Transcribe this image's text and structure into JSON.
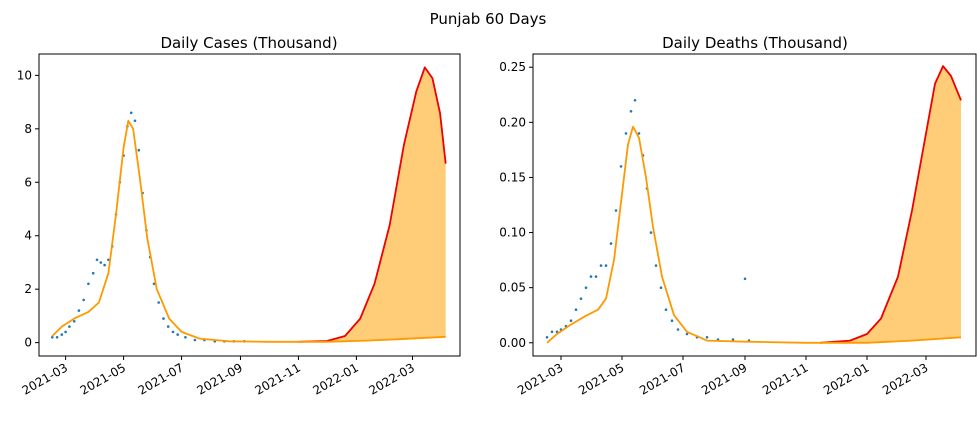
{
  "figure": {
    "suptitle": "Punjab 60 Days"
  },
  "colors": {
    "points": "#1f77b4",
    "forecast": "#ee0000",
    "fit": "#ff9900",
    "band": "#ffcc77"
  },
  "chart_data": [
    {
      "type": "line",
      "title": "Daily Cases (Thousand)",
      "xlabel": "",
      "ylabel": "",
      "x_axis": "date",
      "xlim": [
        "2021-02-01",
        "2022-04-20"
      ],
      "ylim": [
        -0.5,
        10.8
      ],
      "x_ticks": [
        "2021-03",
        "2021-05",
        "2021-07",
        "2021-09",
        "2021-11",
        "2022-01",
        "2022-03"
      ],
      "y_ticks": [
        "0",
        "2",
        "4",
        "6",
        "8",
        "10"
      ],
      "grid": false,
      "legend": "none",
      "series": [
        {
          "kind": "scatter",
          "points": [
            [
              "2021-02-15",
              0.2
            ],
            [
              "2021-02-20",
              0.2
            ],
            [
              "2021-02-25",
              0.3
            ],
            [
              "2021-03-01",
              0.4
            ],
            [
              "2021-03-05",
              0.6
            ],
            [
              "2021-03-10",
              0.8
            ],
            [
              "2021-03-15",
              1.2
            ],
            [
              "2021-03-20",
              1.6
            ],
            [
              "2021-03-25",
              2.2
            ],
            [
              "2021-03-30",
              2.6
            ],
            [
              "2021-04-03",
              3.1
            ],
            [
              "2021-04-07",
              3.0
            ],
            [
              "2021-04-11",
              2.9
            ],
            [
              "2021-04-15",
              3.1
            ],
            [
              "2021-04-19",
              3.6
            ],
            [
              "2021-04-23",
              4.8
            ],
            [
              "2021-04-27",
              6.0
            ],
            [
              "2021-05-01",
              7.0
            ],
            [
              "2021-05-05",
              8.1
            ],
            [
              "2021-05-09",
              8.6
            ],
            [
              "2021-05-13",
              8.3
            ],
            [
              "2021-05-17",
              7.2
            ],
            [
              "2021-05-21",
              5.6
            ],
            [
              "2021-05-25",
              4.2
            ],
            [
              "2021-05-29",
              3.2
            ],
            [
              "2021-06-02",
              2.2
            ],
            [
              "2021-06-07",
              1.5
            ],
            [
              "2021-06-12",
              0.9
            ],
            [
              "2021-06-17",
              0.6
            ],
            [
              "2021-06-22",
              0.4
            ],
            [
              "2021-06-27",
              0.3
            ],
            [
              "2021-07-05",
              0.2
            ],
            [
              "2021-07-15",
              0.1
            ],
            [
              "2021-07-25",
              0.1
            ],
            [
              "2021-08-05",
              0.05
            ],
            [
              "2021-08-15",
              0.05
            ],
            [
              "2021-08-25",
              0.05
            ],
            [
              "2021-09-05",
              0.05
            ]
          ]
        },
        {
          "kind": "line",
          "role": "fit",
          "points": [
            [
              "2021-02-15",
              0.25
            ],
            [
              "2021-02-25",
              0.6
            ],
            [
              "2021-03-10",
              0.9
            ],
            [
              "2021-03-25",
              1.15
            ],
            [
              "2021-04-05",
              1.5
            ],
            [
              "2021-04-15",
              2.6
            ],
            [
              "2021-04-23",
              4.8
            ],
            [
              "2021-05-01",
              7.3
            ],
            [
              "2021-05-06",
              8.3
            ],
            [
              "2021-05-11",
              8.0
            ],
            [
              "2021-05-18",
              6.2
            ],
            [
              "2021-05-26",
              3.9
            ],
            [
              "2021-06-05",
              2.0
            ],
            [
              "2021-06-18",
              0.9
            ],
            [
              "2021-07-01",
              0.4
            ],
            [
              "2021-07-20",
              0.15
            ],
            [
              "2021-08-20",
              0.05
            ],
            [
              "2021-10-01",
              0.03
            ],
            [
              "2021-12-01",
              0.03
            ],
            [
              "2022-01-15",
              0.08
            ],
            [
              "2022-02-15",
              0.13
            ],
            [
              "2022-04-05",
              0.22
            ]
          ]
        },
        {
          "kind": "line",
          "role": "forecast",
          "points": [
            [
              "2021-11-01",
              0.03
            ],
            [
              "2021-12-01",
              0.06
            ],
            [
              "2021-12-20",
              0.25
            ],
            [
              "2022-01-05",
              0.9
            ],
            [
              "2022-01-20",
              2.2
            ],
            [
              "2022-02-05",
              4.4
            ],
            [
              "2022-02-20",
              7.4
            ],
            [
              "2022-03-05",
              9.4
            ],
            [
              "2022-03-14",
              10.3
            ],
            [
              "2022-03-22",
              9.9
            ],
            [
              "2022-03-30",
              8.6
            ],
            [
              "2022-04-05",
              6.7
            ]
          ]
        }
      ]
    },
    {
      "type": "line",
      "title": "Daily Deaths (Thousand)",
      "xlabel": "",
      "ylabel": "",
      "x_axis": "date",
      "xlim": [
        "2021-02-01",
        "2022-04-20"
      ],
      "ylim": [
        -0.012,
        0.262
      ],
      "x_ticks": [
        "2021-03",
        "2021-05",
        "2021-07",
        "2021-09",
        "2021-11",
        "2022-01",
        "2022-03"
      ],
      "y_ticks": [
        "0.00",
        "0.05",
        "0.10",
        "0.15",
        "0.20",
        "0.25"
      ],
      "grid": false,
      "legend": "none",
      "series": [
        {
          "kind": "scatter",
          "points": [
            [
              "2021-02-15",
              0.005
            ],
            [
              "2021-02-20",
              0.01
            ],
            [
              "2021-02-25",
              0.01
            ],
            [
              "2021-03-01",
              0.012
            ],
            [
              "2021-03-06",
              0.015
            ],
            [
              "2021-03-11",
              0.02
            ],
            [
              "2021-03-16",
              0.03
            ],
            [
              "2021-03-21",
              0.04
            ],
            [
              "2021-03-26",
              0.05
            ],
            [
              "2021-03-31",
              0.06
            ],
            [
              "2021-04-05",
              0.06
            ],
            [
              "2021-04-10",
              0.07
            ],
            [
              "2021-04-15",
              0.07
            ],
            [
              "2021-04-20",
              0.09
            ],
            [
              "2021-04-25",
              0.12
            ],
            [
              "2021-04-30",
              0.16
            ],
            [
              "2021-05-05",
              0.19
            ],
            [
              "2021-05-10",
              0.21
            ],
            [
              "2021-05-14",
              0.22
            ],
            [
              "2021-05-18",
              0.19
            ],
            [
              "2021-05-22",
              0.17
            ],
            [
              "2021-05-26",
              0.14
            ],
            [
              "2021-05-30",
              0.1
            ],
            [
              "2021-06-04",
              0.07
            ],
            [
              "2021-06-09",
              0.05
            ],
            [
              "2021-06-14",
              0.03
            ],
            [
              "2021-06-20",
              0.02
            ],
            [
              "2021-06-26",
              0.012
            ],
            [
              "2021-07-05",
              0.008
            ],
            [
              "2021-07-15",
              0.005
            ],
            [
              "2021-07-25",
              0.005
            ],
            [
              "2021-08-05",
              0.003
            ],
            [
              "2021-08-20",
              0.003
            ],
            [
              "2021-09-01",
              0.058
            ],
            [
              "2021-09-05",
              0.002
            ]
          ]
        },
        {
          "kind": "line",
          "role": "fit",
          "points": [
            [
              "2021-02-15",
              0.0
            ],
            [
              "2021-02-25",
              0.008
            ],
            [
              "2021-03-10",
              0.016
            ],
            [
              "2021-03-25",
              0.024
            ],
            [
              "2021-04-07",
              0.03
            ],
            [
              "2021-04-15",
              0.04
            ],
            [
              "2021-04-23",
              0.075
            ],
            [
              "2021-05-01",
              0.135
            ],
            [
              "2021-05-07",
              0.18
            ],
            [
              "2021-05-12",
              0.196
            ],
            [
              "2021-05-18",
              0.186
            ],
            [
              "2021-05-25",
              0.15
            ],
            [
              "2021-06-01",
              0.105
            ],
            [
              "2021-06-10",
              0.06
            ],
            [
              "2021-06-22",
              0.025
            ],
            [
              "2021-07-05",
              0.01
            ],
            [
              "2021-07-25",
              0.002
            ],
            [
              "2021-09-01",
              0.001
            ],
            [
              "2021-11-01",
              0.0
            ],
            [
              "2022-01-01",
              0.0
            ],
            [
              "2022-02-15",
              0.002
            ],
            [
              "2022-04-05",
              0.005
            ]
          ]
        },
        {
          "kind": "line",
          "role": "forecast",
          "points": [
            [
              "2021-11-15",
              0.0
            ],
            [
              "2021-12-15",
              0.002
            ],
            [
              "2022-01-01",
              0.008
            ],
            [
              "2022-01-15",
              0.022
            ],
            [
              "2022-02-01",
              0.06
            ],
            [
              "2022-02-15",
              0.12
            ],
            [
              "2022-03-01",
              0.19
            ],
            [
              "2022-03-10",
              0.235
            ],
            [
              "2022-03-18",
              0.251
            ],
            [
              "2022-03-26",
              0.242
            ],
            [
              "2022-04-05",
              0.22
            ]
          ]
        }
      ]
    }
  ]
}
